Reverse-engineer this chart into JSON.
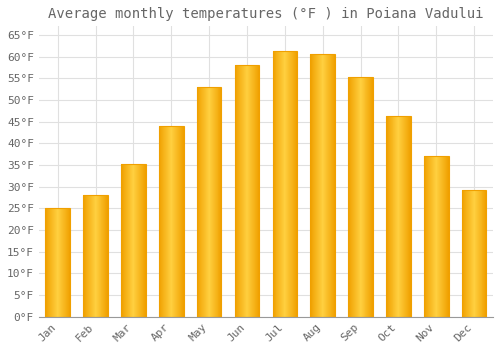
{
  "title": "Average monthly temperatures (°F ) in Poiana Vadului",
  "months": [
    "Jan",
    "Feb",
    "Mar",
    "Apr",
    "May",
    "Jun",
    "Jul",
    "Aug",
    "Sep",
    "Oct",
    "Nov",
    "Dec"
  ],
  "values": [
    25.2,
    28.2,
    35.2,
    44.1,
    52.9,
    58.1,
    61.2,
    60.6,
    55.2,
    46.2,
    37.0,
    29.3
  ],
  "bar_color_center": "#FFD040",
  "bar_color_edge": "#F0A000",
  "background_color": "#FFFFFF",
  "grid_color": "#E0E0E0",
  "text_color": "#666666",
  "title_fontsize": 10,
  "tick_fontsize": 8,
  "ylim": [
    0,
    67
  ],
  "yticks": [
    0,
    5,
    10,
    15,
    20,
    25,
    30,
    35,
    40,
    45,
    50,
    55,
    60,
    65
  ]
}
